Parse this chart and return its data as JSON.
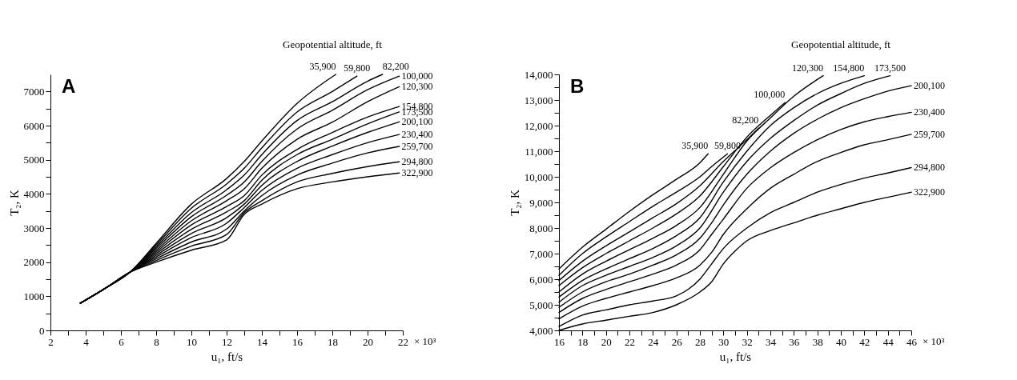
{
  "chart_data": [
    {
      "type": "line",
      "title": "A",
      "xlabel": "u₁, ft/s",
      "ylabel": "T₂, K",
      "legend_title": "Geopotential altitude, ft",
      "xlim": [
        2,
        22
      ],
      "ylim": [
        0,
        7500
      ],
      "xticks": [
        2,
        {
          "value": 3,
          "label": null
        },
        4,
        {
          "value": 5,
          "label": null
        },
        6,
        {
          "value": 7,
          "label": null
        },
        8,
        {
          "value": 9,
          "label": null
        },
        10,
        {
          "value": 11,
          "label": null
        },
        12,
        {
          "value": 13,
          "label": null
        },
        14,
        {
          "value": 15,
          "label": null
        },
        16,
        {
          "value": 17,
          "label": null
        },
        18,
        {
          "value": 19,
          "label": null
        },
        20,
        {
          "value": 21,
          "label": null
        },
        22
      ],
      "annotations": [
        "× 10³"
      ],
      "yticks": [
        0,
        {
          "value": 500,
          "label": null
        },
        1000,
        {
          "value": 1500,
          "label": null
        },
        2000,
        {
          "value": 2500,
          "label": null
        },
        3000,
        {
          "value": 3500,
          "label": null
        },
        4000,
        {
          "value": 4500,
          "label": null
        },
        5000,
        {
          "value": 5500,
          "label": null
        },
        6000,
        {
          "value": 6500,
          "label": null
        },
        7000
      ],
      "grid": false,
      "marker": "none",
      "line_style": "solid",
      "series": [
        {
          "name": "35,900",
          "color": "#000000",
          "x": [
            3.7,
            5,
            6.5,
            8,
            10,
            12,
            13,
            14,
            16,
            18.2
          ],
          "values": [
            800,
            1200,
            1700,
            2550,
            3700,
            4450,
            4950,
            5550,
            6650,
            7500
          ]
        },
        {
          "name": "59,800",
          "color": "#000000",
          "x": [
            3.7,
            5,
            6.5,
            8,
            10,
            12,
            13,
            14,
            16,
            18,
            19.4
          ],
          "values": [
            800,
            1200,
            1700,
            2500,
            3580,
            4290,
            4750,
            5350,
            6400,
            7000,
            7450
          ]
        },
        {
          "name": "82,200",
          "color": "#000000",
          "x": [
            3.7,
            5,
            6.5,
            8,
            10,
            12,
            13,
            14,
            16,
            18,
            20,
            20.85
          ],
          "values": [
            800,
            1200,
            1700,
            2450,
            3450,
            4120,
            4550,
            5150,
            6150,
            6700,
            7300,
            7500
          ]
        },
        {
          "name": "100,000",
          "color": "#000000",
          "x": [
            3.7,
            5,
            6.5,
            8,
            10,
            12,
            13,
            14,
            16,
            18,
            20,
            21.8
          ],
          "values": [
            800,
            1200,
            1700,
            2400,
            3330,
            3960,
            4350,
            4950,
            5900,
            6450,
            7050,
            7450
          ]
        },
        {
          "name": "120,300",
          "color": "#000000",
          "x": [
            3.7,
            5,
            6.5,
            8,
            10,
            12,
            13,
            14,
            16,
            18,
            20,
            21.8
          ],
          "values": [
            800,
            1200,
            1700,
            2350,
            3210,
            3800,
            4150,
            4750,
            5600,
            6100,
            6700,
            7140
          ]
        },
        {
          "name": "154,800",
          "color": "#000000",
          "x": [
            3.7,
            5,
            6.5,
            8,
            10,
            12,
            13,
            14,
            16,
            18,
            20,
            21.8
          ],
          "values": [
            800,
            1200,
            1700,
            2300,
            3090,
            3630,
            3950,
            4550,
            5300,
            5800,
            6250,
            6560
          ]
        },
        {
          "name": "173,500",
          "color": "#000000",
          "x": [
            3.7,
            5,
            6.5,
            8,
            10,
            12,
            13,
            14,
            16,
            18,
            20,
            21.8
          ],
          "values": [
            800,
            1200,
            1700,
            2250,
            2960,
            3470,
            3800,
            4400,
            5150,
            5600,
            6050,
            6400
          ]
        },
        {
          "name": "200,100",
          "color": "#000000",
          "x": [
            3.7,
            5,
            6.5,
            8,
            10,
            12,
            13,
            14,
            16,
            18,
            20,
            21.8
          ],
          "values": [
            800,
            1200,
            1700,
            2200,
            2840,
            3300,
            3700,
            4250,
            4950,
            5400,
            5800,
            6110
          ]
        },
        {
          "name": "230,400",
          "color": "#000000",
          "x": [
            3.7,
            5,
            6.5,
            8,
            10,
            12,
            13,
            14,
            16,
            18,
            20,
            21.8
          ],
          "values": [
            800,
            1200,
            1700,
            2150,
            2720,
            3140,
            3600,
            4100,
            4750,
            5150,
            5500,
            5740
          ]
        },
        {
          "name": "259,700",
          "color": "#000000",
          "x": [
            3.7,
            5,
            6.5,
            8,
            10,
            12,
            13,
            14,
            16,
            18,
            20,
            21.8
          ],
          "values": [
            800,
            1200,
            1700,
            2100,
            2590,
            2970,
            3500,
            3950,
            4550,
            4900,
            5200,
            5390
          ]
        },
        {
          "name": "294,800",
          "color": "#000000",
          "x": [
            3.7,
            5,
            6.5,
            8,
            10,
            12,
            13,
            14,
            16,
            18,
            20,
            21.8
          ],
          "values": [
            800,
            1200,
            1700,
            2050,
            2470,
            2810,
            3450,
            3800,
            4350,
            4600,
            4800,
            4940
          ]
        },
        {
          "name": "322,900",
          "color": "#000000",
          "x": [
            3.7,
            5,
            6.5,
            8,
            10,
            12,
            13,
            14,
            16,
            18,
            20,
            21.8
          ],
          "values": [
            800,
            1200,
            1700,
            2000,
            2350,
            2650,
            3400,
            3700,
            4150,
            4350,
            4500,
            4610
          ]
        }
      ]
    },
    {
      "type": "line",
      "title": "B",
      "xlabel": "u₁, ft/s",
      "ylabel": "T₂, K",
      "legend_title": "Geopotential altitude, ft",
      "xlim": [
        16,
        46
      ],
      "ylim": [
        4000,
        14000
      ],
      "xticks": [
        16,
        {
          "value": 17,
          "label": null
        },
        18,
        {
          "value": 19,
          "label": null
        },
        20,
        {
          "value": 21,
          "label": null
        },
        22,
        {
          "value": 23,
          "label": null
        },
        24,
        {
          "value": 25,
          "label": null
        },
        26,
        {
          "value": 27,
          "label": null
        },
        28,
        {
          "value": 29,
          "label": null
        },
        30,
        {
          "value": 31,
          "label": null
        },
        32,
        {
          "value": 33,
          "label": null
        },
        34,
        {
          "value": 35,
          "label": null
        },
        36,
        {
          "value": 37,
          "label": null
        },
        38,
        {
          "value": 39,
          "label": null
        },
        40,
        {
          "value": 41,
          "label": null
        },
        42,
        {
          "value": 43,
          "label": null
        },
        44,
        {
          "value": 45,
          "label": null
        },
        46
      ],
      "annotations": [
        "× 10³"
      ],
      "yticks": [
        {
          "value": 4000,
          "label": "4,000"
        },
        {
          "value": 4500,
          "label": null
        },
        {
          "value": 5000,
          "label": "5,000"
        },
        {
          "value": 5500,
          "label": null
        },
        {
          "value": 6000,
          "label": "6,000"
        },
        {
          "value": 6500,
          "label": null
        },
        {
          "value": 7000,
          "label": "7,000"
        },
        {
          "value": 7500,
          "label": null
        },
        {
          "value": 8000,
          "label": "8,000"
        },
        {
          "value": 8500,
          "label": null
        },
        {
          "value": 9000,
          "label": "9,000"
        },
        {
          "value": 9500,
          "label": null
        },
        {
          "value": 10000,
          "label": "10,000"
        },
        {
          "value": 10500,
          "label": null
        },
        {
          "value": 11000,
          "label": "11,000"
        },
        {
          "value": 11500,
          "label": null
        },
        {
          "value": 12000,
          "label": "12,000"
        },
        {
          "value": 12500,
          "label": null
        },
        {
          "value": 13000,
          "label": "13,000"
        },
        {
          "value": 13500,
          "label": null
        },
        {
          "value": 14000,
          "label": "14,000"
        }
      ],
      "grid": false,
      "marker": "none",
      "line_style": "solid",
      "series": [
        {
          "name": "35,900",
          "color": "#000000",
          "x": [
            16,
            18,
            20,
            22,
            24,
            26,
            28,
            28.7
          ],
          "values": [
            6400,
            7250,
            7950,
            8650,
            9300,
            9900,
            10550,
            10900
          ]
        },
        {
          "name": "59,800",
          "color": "#000000",
          "x": [
            16,
            18,
            20,
            22,
            24,
            26,
            28,
            29,
            30.35
          ],
          "values": [
            6150,
            7000,
            7650,
            8250,
            8850,
            9400,
            10000,
            10400,
            10900
          ]
        },
        {
          "name": "82,200",
          "color": "#000000",
          "x": [
            16,
            18,
            20,
            22,
            24,
            26,
            28,
            30,
            32,
            33
          ],
          "values": [
            5950,
            6700,
            7300,
            7850,
            8400,
            8950,
            9650,
            10600,
            11450,
            11900
          ]
        },
        {
          "name": "100,000",
          "color": "#000000",
          "x": [
            16,
            18,
            20,
            22,
            24,
            26,
            28,
            30,
            32,
            34,
            35.25
          ],
          "values": [
            5750,
            6450,
            7000,
            7500,
            8000,
            8550,
            9250,
            10400,
            11550,
            12400,
            12900
          ]
        },
        {
          "name": "120,300",
          "color": "#000000",
          "x": [
            16,
            18,
            20,
            22,
            24,
            26,
            28,
            30,
            32,
            34,
            36,
            38.5
          ],
          "values": [
            5500,
            6200,
            6700,
            7150,
            7600,
            8100,
            8800,
            10100,
            11400,
            12300,
            13150,
            13950
          ]
        },
        {
          "name": "154,800",
          "color": "#000000",
          "x": [
            16,
            18,
            20,
            22,
            24,
            26,
            28,
            30,
            32,
            34,
            36,
            38,
            40,
            42
          ],
          "values": [
            5300,
            5950,
            6400,
            6800,
            7200,
            7700,
            8400,
            9800,
            11000,
            12000,
            12700,
            13250,
            13650,
            13950
          ]
        },
        {
          "name": "173,500",
          "color": "#000000",
          "x": [
            16,
            18,
            20,
            22,
            24,
            26,
            28,
            30,
            32,
            34,
            36,
            38,
            40,
            42,
            44.2
          ],
          "values": [
            5100,
            5750,
            6150,
            6500,
            6850,
            7300,
            8000,
            9400,
            10600,
            11500,
            12200,
            12800,
            13250,
            13650,
            13950
          ]
        },
        {
          "name": "200,100",
          "color": "#000000",
          "x": [
            16,
            18,
            20,
            22,
            24,
            26,
            28,
            29,
            30,
            32,
            34,
            36,
            38,
            40,
            42,
            44,
            46
          ],
          "values": [
            4900,
            5500,
            5900,
            6200,
            6550,
            6950,
            7600,
            8200,
            8900,
            10100,
            11000,
            11700,
            12250,
            12700,
            13050,
            13350,
            13560
          ]
        },
        {
          "name": "230,400",
          "color": "#000000",
          "x": [
            16,
            18,
            20,
            22,
            24,
            26,
            28,
            29,
            30,
            32,
            34,
            36,
            38,
            40,
            42,
            44,
            46
          ],
          "values": [
            4700,
            5250,
            5600,
            5900,
            6200,
            6550,
            7150,
            7750,
            8350,
            9550,
            10350,
            10950,
            11450,
            11850,
            12150,
            12350,
            12520
          ]
        },
        {
          "name": "259,700",
          "color": "#000000",
          "x": [
            16,
            18,
            20,
            22,
            24,
            26,
            28,
            29,
            30,
            32,
            34,
            36,
            38,
            40,
            42,
            44,
            46
          ],
          "values": [
            4450,
            4950,
            5250,
            5500,
            5750,
            6050,
            6550,
            7050,
            7750,
            8750,
            9550,
            10100,
            10600,
            10950,
            11250,
            11450,
            11660
          ]
        },
        {
          "name": "294,800",
          "color": "#000000",
          "x": [
            16,
            18,
            20,
            22,
            24,
            26,
            27,
            28,
            29,
            30,
            32,
            34,
            36,
            38,
            40,
            42,
            44,
            46
          ],
          "values": [
            4150,
            4600,
            4800,
            5000,
            5150,
            5350,
            5600,
            6000,
            6600,
            7200,
            8000,
            8600,
            9000,
            9400,
            9700,
            9950,
            10150,
            10360
          ]
        },
        {
          "name": "322,900",
          "color": "#000000",
          "x": [
            16,
            18,
            20,
            22,
            24,
            26,
            28,
            29,
            30,
            31,
            32,
            34,
            36,
            38,
            40,
            42,
            44,
            46
          ],
          "values": [
            4000,
            4250,
            4400,
            4550,
            4700,
            5000,
            5500,
            5900,
            6600,
            7100,
            7500,
            7900,
            8200,
            8500,
            8750,
            9000,
            9200,
            9400
          ]
        }
      ]
    }
  ]
}
